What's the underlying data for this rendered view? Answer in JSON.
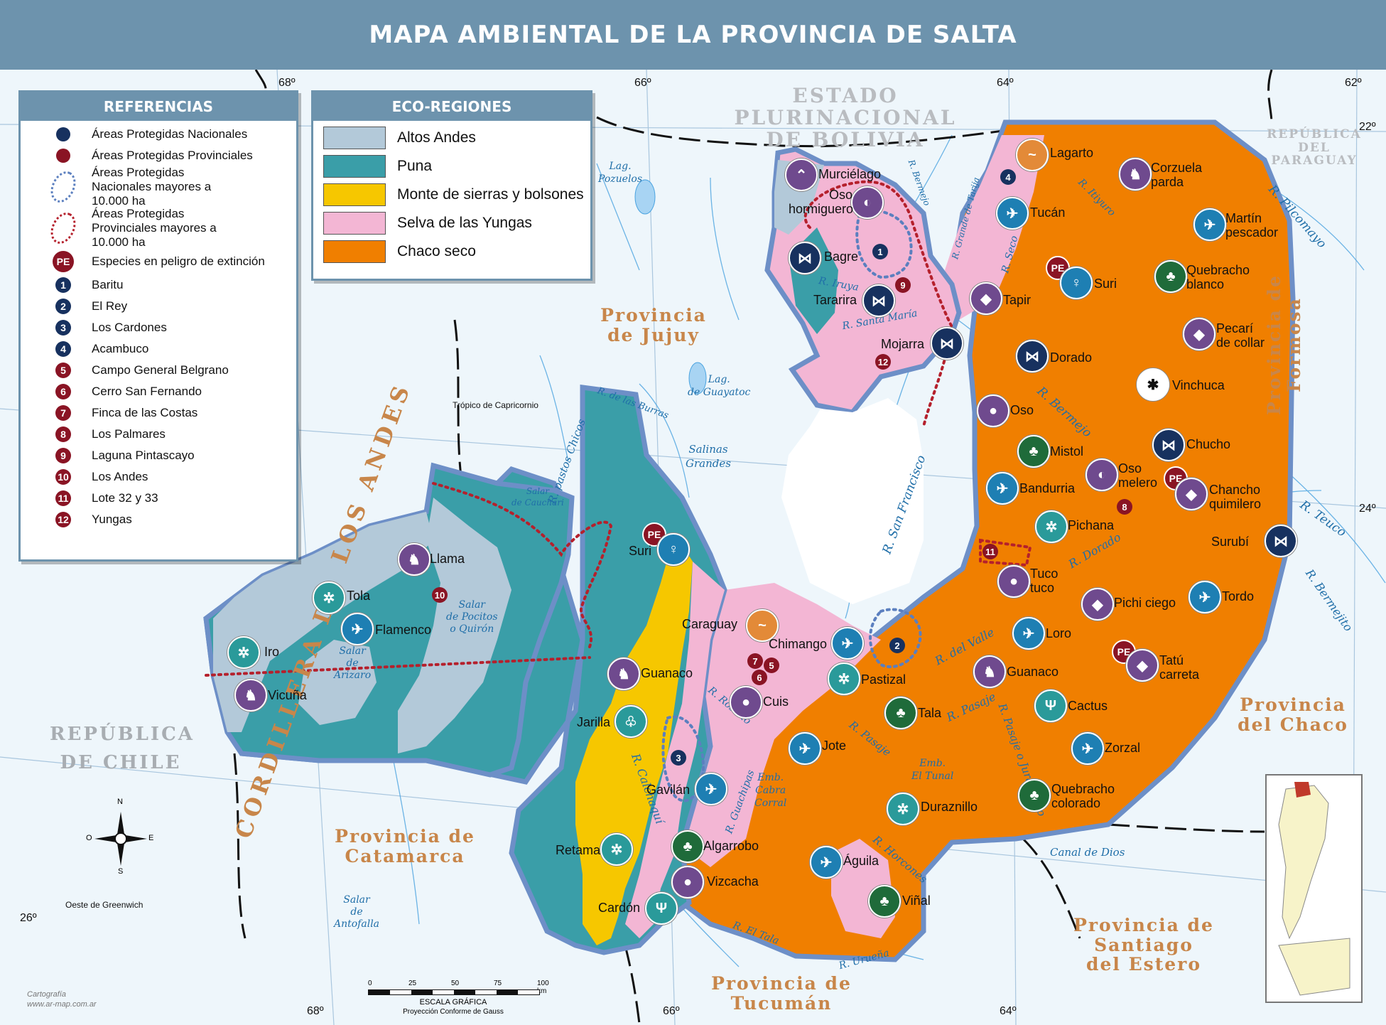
{
  "title": "MAPA AMBIENTAL DE LA PROVINCIA DE SALTA",
  "legend": {
    "title": "REFERENCIAS",
    "items": [
      {
        "label": "Áreas Protegidas Nacionales",
        "color": "#17315f",
        "symbol": "dot"
      },
      {
        "label": "Áreas Protegidas Provinciales",
        "color": "#8a1424",
        "symbol": "dot"
      },
      {
        "label": "Áreas Protegidas Nacionales mayores a 10.000 ha",
        "color": "#5b7fbf",
        "symbol": "dotted-outline"
      },
      {
        "label": "Áreas Protegidas Provinciales mayores a 10.000 ha",
        "color": "#b5202c",
        "symbol": "dotted-outline"
      },
      {
        "label": "Especies en peligro de extinción",
        "symbol_text": "PE"
      }
    ],
    "areas": [
      {
        "num": "1",
        "name": "Baritu",
        "type": "nat"
      },
      {
        "num": "2",
        "name": "El Rey",
        "type": "nat"
      },
      {
        "num": "3",
        "name": "Los Cardones",
        "type": "nat"
      },
      {
        "num": "4",
        "name": "Acambuco",
        "type": "nat"
      },
      {
        "num": "5",
        "name": "Campo General Belgrano",
        "type": "prov"
      },
      {
        "num": "6",
        "name": "Cerro San Fernando",
        "type": "prov"
      },
      {
        "num": "7",
        "name": "Finca de las Costas",
        "type": "prov"
      },
      {
        "num": "8",
        "name": "Los Palmares",
        "type": "prov"
      },
      {
        "num": "9",
        "name": "Laguna Pintascayo",
        "type": "prov"
      },
      {
        "num": "10",
        "name": "Los Andes",
        "type": "prov"
      },
      {
        "num": "11",
        "name": "Lote 32 y 33",
        "type": "prov"
      },
      {
        "num": "12",
        "name": "Yungas",
        "type": "prov"
      }
    ]
  },
  "ecoregions": {
    "title": "ECO-REGIONES",
    "items": [
      {
        "name": "Altos Andes",
        "color": "#b3c9d9"
      },
      {
        "name": "Puna",
        "color": "#3a9ea8"
      },
      {
        "name": "Monte de sierras y bolsones",
        "color": "#f6c700"
      },
      {
        "name": "Selva de las Yungas",
        "color": "#f3b6d4"
      },
      {
        "name": "Chaco seco",
        "color": "#f07f00"
      }
    ]
  },
  "regions": {
    "bolivia_1": "ESTADO PLURINACIONAL",
    "bolivia_2": "DE BOLIVIA",
    "paraguay_1": "REPÚBLICA",
    "paraguay_2": "DEL PARAGUAY",
    "chile_1": "REPÚBLICA",
    "chile_2": "DE CHILE",
    "jujuy_1": "Provincia",
    "jujuy_2": "de Jujuy",
    "catamarca_1": "Provincia de",
    "catamarca_2": "Catamarca",
    "tucuman_1": "Provincia de",
    "tucuman_2": "Tucumán",
    "santiago_1": "Provincia de",
    "santiago_2": "Santiago",
    "santiago_3": "del Estero",
    "chaco_1": "Provincia",
    "chaco_2": "del Chaco",
    "formosa_1": "Provincia de",
    "formosa_2": "Formosa",
    "andes_1": "CORDILLERA DE",
    "andes_2": "LOS ANDES"
  },
  "coordinates": {
    "lon68_top": "68º",
    "lon66_top": "66º",
    "lon64_top": "64º",
    "lon62_top": "62º",
    "lon68_bot": "68º",
    "lon66_bot": "66º",
    "lon64_bot": "64º",
    "lat22": "22º",
    "lat24": "24º",
    "lat26": "26º",
    "tropic": "Trópico de Capricornio",
    "greenwich": "Oeste de Greenwich"
  },
  "rivers": {
    "pilcomayo": "R. Pilcomayo",
    "itiyuro": "R. Itiyuro",
    "seco": "R. Seco",
    "grande_tarija": "R. Grande de Tarija",
    "bermejo_top": "R. Bermejo",
    "bermejo": "R. Bermejo",
    "iruya": "R. Iruya",
    "santa_maria": "R. Santa María",
    "san_francisco": "R. San Francisco",
    "dorado": "R. Dorado",
    "teuco": "R. Teuco",
    "bermejito": "R. Bermejito",
    "del_valle": "R. del Valle",
    "pasaje": "R. Pasaje",
    "pasaje_juramento": "R. Pasaje o Juramento",
    "rosario": "R. Rosario",
    "calchaqui": "R. Calchaquí",
    "guachipas": "R. Guachipas",
    "horcones": "R. Horcones",
    "urueña": "R. Urueña",
    "el_tala": "R. El Tala",
    "las_burras": "R. de las Burras",
    "pastos_chicos": "R. pastos Chicos",
    "canal_dios": "Canal de Dios",
    "emb_cabra_1": "Emb.",
    "emb_cabra_2": "Cabra",
    "emb_cabra_3": "Corral",
    "emb_tunal_1": "Emb.",
    "emb_tunal_2": "El Tunal",
    "lag_pozuelos_1": "Lag.",
    "lag_pozuelos_2": "Pozuelos",
    "lag_guayatoc_1": "Lag.",
    "lag_guayatoc_2": "de Guayatoc",
    "salinas_1": "Salinas",
    "salinas_2": "Grandes",
    "salar_cauchari_1": "Salar",
    "salar_cauchari_2": "de Cauchari",
    "salar_pocitos_1": "Salar",
    "salar_pocitos_2": "de Pocitos",
    "salar_pocitos_3": "o Quirón",
    "salar_arizaro_1": "Salar",
    "salar_arizaro_2": "de",
    "salar_arizaro_3": "Arizaro",
    "salar_antofalla_1": "Salar",
    "salar_antofalla_2": "de",
    "salar_antofalla_3": "Antofalla"
  },
  "species": {
    "lagarto": "Lagarto",
    "corzuela_1": "Corzuela",
    "corzuela_2": "parda",
    "murcielago": "Murciélago",
    "oso_horm_1": "Oso",
    "oso_horm_2": "hormiguero",
    "tucan": "Tucán",
    "martin_1": "Martín",
    "martin_2": "pescador",
    "bagre": "Bagre",
    "suri": "Suri",
    "quebracho_b_1": "Quebracho",
    "quebracho_b_2": "blanco",
    "tararira": "Tararira",
    "tapir": "Tapir",
    "pecari_1": "Pecarí",
    "pecari_2": "de collar",
    "mojarra": "Mojarra",
    "dorado": "Dorado",
    "vinchuca": "Vinchuca",
    "oso": "Oso",
    "chucho": "Chucho",
    "mistol": "Mistol",
    "oso_melero_1": "Oso",
    "oso_melero_2": "melero",
    "bandurria": "Bandurria",
    "chancho_1": "Chancho",
    "chancho_2": "quimilero",
    "pichana": "Pichana",
    "surubi": "Surubí",
    "llama": "Llama",
    "suri_west": "Suri",
    "tucotuco_1": "Tuco",
    "tucotuco_2": "tuco",
    "tola": "Tola",
    "pichi_ciego": "Pichi ciego",
    "tordo": "Tordo",
    "flamenco": "Flamenco",
    "caraguay": "Caraguay",
    "chimango": "Chimango",
    "loro": "Loro",
    "iro": "Iro",
    "tatu_1": "Tatú",
    "tatu_2": "carreta",
    "guanaco_w": "Guanaco",
    "pastizal": "Pastizal",
    "guanaco_e": "Guanaco",
    "vicuna": "Vicuña",
    "cuis": "Cuis",
    "tala": "Tala",
    "cactus": "Cactus",
    "jarilla": "Jarilla",
    "jote": "Jote",
    "zorzal": "Zorzal",
    "gavilan": "Gavilán",
    "quebracho_c_1": "Quebracho",
    "quebracho_c_2": "colorado",
    "duraznillo": "Duraznillo",
    "retama": "Retama",
    "algarrobo": "Algarrobo",
    "aguila": "Águila",
    "vizcacha": "Vizcacha",
    "vinal": "Viñal",
    "cardon": "Cardón"
  },
  "compass": {
    "n": "N",
    "s": "S",
    "e": "E",
    "o": "O"
  },
  "scale": {
    "ticks": [
      "0",
      "25",
      "50",
      "75",
      "100 km"
    ],
    "label_1": "ESCALA GRÁFICA",
    "label_2": "Proyección Conforme de Gauss"
  },
  "credit": {
    "line1": "Cartografía",
    "line2": "www.ar-map.com.ar"
  }
}
